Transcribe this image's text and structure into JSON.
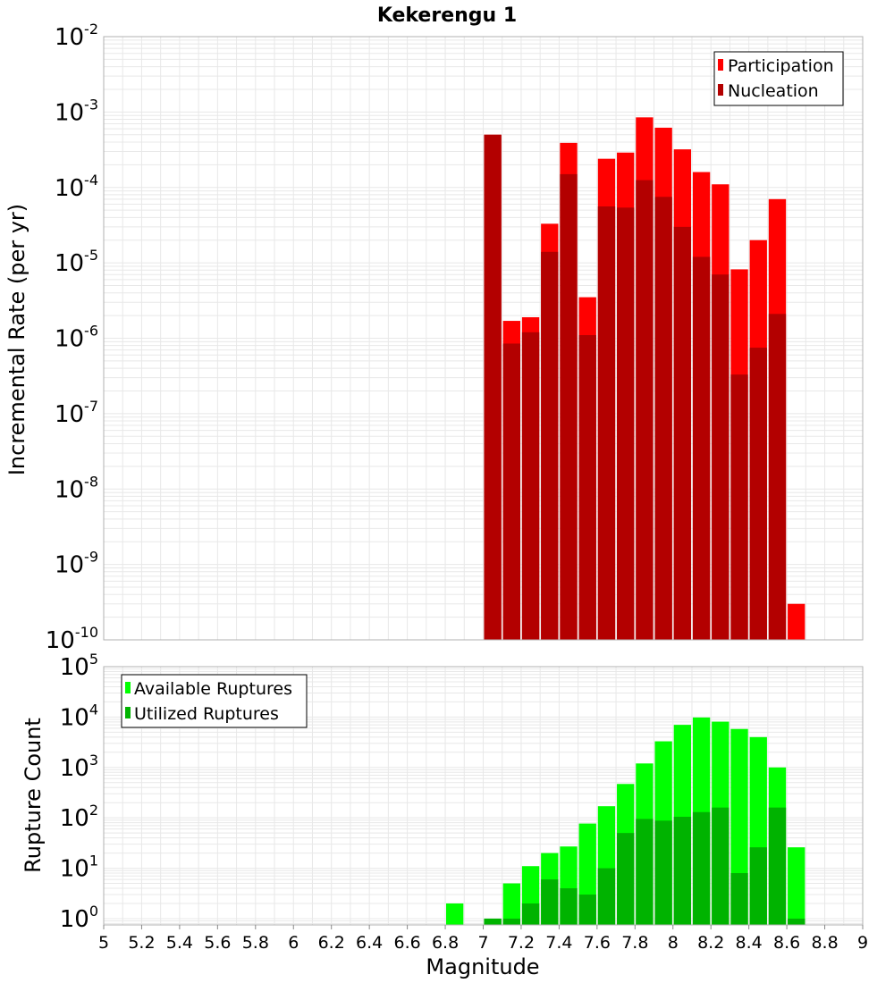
{
  "chart_data": [
    {
      "type": "bar",
      "title": "Kekerengu 1",
      "xlabel": "",
      "ylabel": "Incremental Rate (per yr)",
      "yscale": "log",
      "ylim": [
        1e-10,
        0.01
      ],
      "xlim": [
        5,
        9
      ],
      "grid": true,
      "legend_position": "top-right",
      "series": [
        {
          "name": "Participation",
          "color": "#ff0000",
          "x": [
            7.05,
            7.15,
            7.25,
            7.35,
            7.45,
            7.55,
            7.65,
            7.75,
            7.85,
            7.95,
            8.05,
            8.15,
            8.25,
            8.35,
            8.45,
            8.55,
            8.65
          ],
          "values": [
            0.0005,
            1.7e-06,
            1.9e-06,
            3.3e-05,
            0.00039,
            3.5e-06,
            0.00024,
            0.00029,
            0.00085,
            0.00062,
            0.00032,
            0.00016,
            0.00011,
            8.2e-06,
            2e-05,
            7e-05,
            3e-10
          ]
        },
        {
          "name": "Nucleation",
          "color": "#b30000",
          "x": [
            7.05,
            7.15,
            7.25,
            7.35,
            7.45,
            7.55,
            7.65,
            7.75,
            7.85,
            7.95,
            8.05,
            8.15,
            8.25,
            8.35,
            8.45,
            8.55
          ],
          "values": [
            0.0005,
            8.5e-07,
            1.2e-06,
            1.4e-05,
            0.00015,
            1.1e-06,
            5.6e-05,
            5.4e-05,
            0.000125,
            7.5e-05,
            3e-05,
            1.2e-05,
            7e-06,
            3.3e-07,
            7.5e-07,
            2.1e-06
          ]
        }
      ]
    },
    {
      "type": "bar",
      "title": "",
      "xlabel": "Magnitude",
      "ylabel": "Rupture Count",
      "yscale": "log",
      "ylim": [
        0.75,
        100000.0
      ],
      "xlim": [
        5,
        9
      ],
      "grid": true,
      "legend_position": "top-left",
      "x_ticks": [
        "5",
        "5.2",
        "5.4",
        "5.6",
        "5.8",
        "6",
        "6.2",
        "6.4",
        "6.6",
        "6.8",
        "7",
        "7.2",
        "7.4",
        "7.6",
        "7.8",
        "8",
        "8.2",
        "8.4",
        "8.6",
        "8.8",
        "9"
      ],
      "series": [
        {
          "name": "Available Ruptures",
          "color": "#00ff00",
          "x": [
            6.85,
            7.05,
            7.15,
            7.25,
            7.35,
            7.45,
            7.55,
            7.65,
            7.75,
            7.85,
            7.95,
            8.05,
            8.15,
            8.25,
            8.35,
            8.45,
            8.55,
            8.65
          ],
          "values": [
            2,
            1,
            5,
            11,
            20,
            27,
            77,
            170,
            470,
            1200,
            3300,
            7000,
            9800,
            8100,
            5800,
            4000,
            1000,
            26
          ]
        },
        {
          "name": "Utilized Ruptures",
          "color": "#00b300",
          "x": [
            7.05,
            7.15,
            7.25,
            7.35,
            7.45,
            7.55,
            7.65,
            7.75,
            7.85,
            7.95,
            8.05,
            8.15,
            8.25,
            8.35,
            8.45,
            8.55,
            8.65
          ],
          "values": [
            1,
            1,
            2,
            6,
            4,
            3,
            10,
            50,
            95,
            88,
            105,
            130,
            160,
            8,
            26,
            160,
            1
          ]
        }
      ]
    }
  ]
}
